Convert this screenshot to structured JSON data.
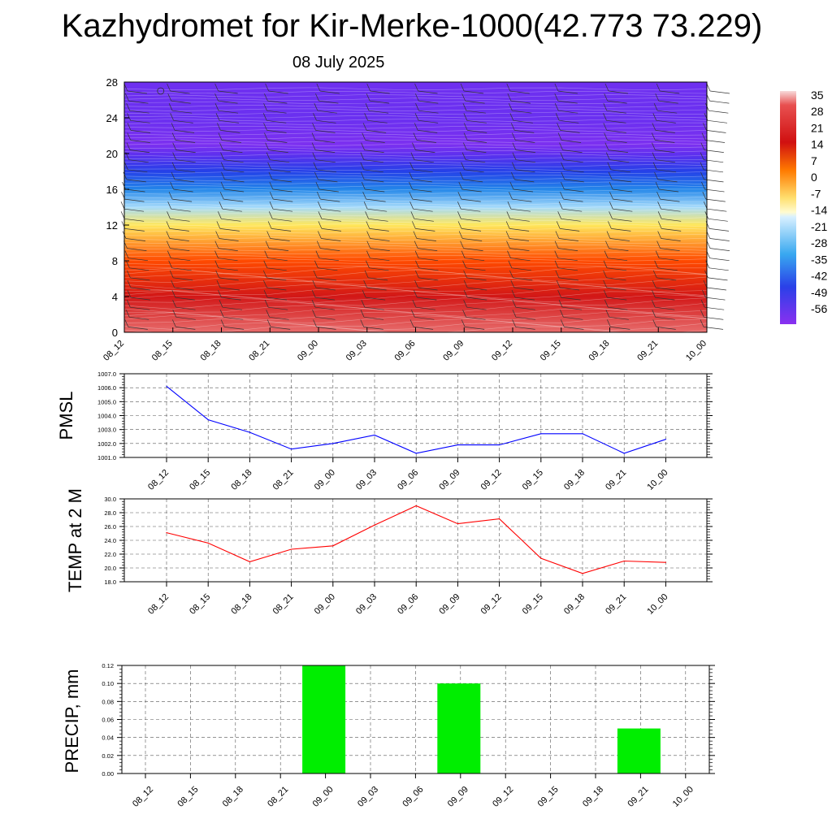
{
  "header": {
    "title": "Kazhydromet for Kir-Merke-1000(42.773 73.229)",
    "subtitle": "08 July 2025"
  },
  "colors": {
    "pmsl_line": "#0000ff",
    "temp_line": "#ff0000",
    "precip_bar": "#00ee00",
    "colorbar_top": "#f0c8c8",
    "colorbar_red": "#d01010",
    "colorbar_orange": "#ff8c00",
    "colorbar_yellow": "#fff57a",
    "colorbar_cyan": "#40b8f0",
    "colorbar_blue": "#2040e0",
    "colorbar_violet": "#8030f0"
  },
  "chart_data": [
    {
      "type": "heatmap",
      "description_key": "vertical temperature cross-section with wind barbs",
      "x_ticks": [
        "08_12",
        "08_15",
        "08_18",
        "08_21",
        "09_00",
        "09_03",
        "09_06",
        "09_09",
        "09_12",
        "09_15",
        "09_18",
        "09_21",
        "10_00"
      ],
      "y_ticks": [
        0,
        4,
        8,
        12,
        16,
        20,
        24,
        28
      ],
      "ylim": [
        0,
        28
      ],
      "colorbar_labels": [
        "35",
        "28",
        "21",
        "14",
        "7",
        "0",
        "-7",
        "-14",
        "-21",
        "-28",
        "-35",
        "-42",
        "-49",
        "-56"
      ],
      "temperature_profile": [
        {
          "height": 0,
          "temp": 30
        },
        {
          "height": 4,
          "temp": 22
        },
        {
          "height": 8,
          "temp": 12
        },
        {
          "height": 12,
          "temp": -5
        },
        {
          "height": 14,
          "temp": -18
        },
        {
          "height": 16,
          "temp": -34
        },
        {
          "height": 18,
          "temp": -45
        },
        {
          "height": 20,
          "temp": -55
        },
        {
          "height": 21,
          "temp": -60
        },
        {
          "height": 24,
          "temp": -56
        },
        {
          "height": 28,
          "temp": -57
        }
      ]
    },
    {
      "type": "line",
      "ylabel": "PMSL",
      "x": [
        "08_12",
        "08_15",
        "08_18",
        "08_21",
        "09_00",
        "09_03",
        "09_06",
        "09_09",
        "09_12",
        "09_15",
        "09_18",
        "09_21",
        "10_00"
      ],
      "values": [
        1006.1,
        1003.7,
        1002.8,
        1001.6,
        1002.0,
        1002.6,
        1001.3,
        1001.9,
        1001.9,
        1002.7,
        1002.7,
        1001.3,
        1002.3
      ],
      "ylim": [
        1001.0,
        1007.0
      ],
      "y_ticks": [
        "1001.0",
        "1002.0",
        "1003.0",
        "1004.0",
        "1005.0",
        "1006.0",
        "1007.0"
      ],
      "grid": true
    },
    {
      "type": "line",
      "ylabel": "TEMP at 2 M",
      "x": [
        "08_12",
        "08_15",
        "08_18",
        "08_21",
        "09_00",
        "09_03",
        "09_06",
        "09_09",
        "09_12",
        "09_15",
        "09_18",
        "09_21",
        "10_00"
      ],
      "values": [
        25.1,
        23.6,
        20.9,
        22.7,
        23.2,
        26.2,
        29.0,
        26.4,
        27.1,
        21.4,
        19.2,
        21.0,
        20.8
      ],
      "ylim": [
        18.0,
        30.0
      ],
      "y_ticks": [
        "18.0",
        "20.0",
        "22.0",
        "24.0",
        "26.0",
        "28.0",
        "30.0"
      ],
      "grid": true
    },
    {
      "type": "bar",
      "ylabel": "PRECIP, mm",
      "categories": [
        "08_12",
        "08_15",
        "08_18",
        "08_21",
        "09_00",
        "09_03",
        "09_06",
        "09_09",
        "09_12",
        "09_15",
        "09_18",
        "09_21",
        "10_00"
      ],
      "values": [
        0,
        0,
        0,
        0,
        0.12,
        0,
        0,
        0.1,
        0,
        0,
        0,
        0.05,
        0
      ],
      "ylim": [
        0,
        0.12
      ],
      "y_ticks": [
        "0.00",
        "0.02",
        "0.04",
        "0.06",
        "0.08",
        "0.10",
        "0.12"
      ],
      "grid": true
    }
  ]
}
